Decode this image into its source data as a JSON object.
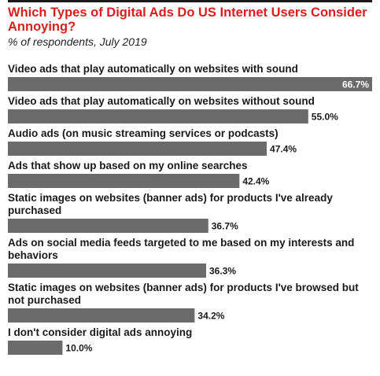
{
  "chart_data": {
    "type": "bar",
    "orientation": "horizontal",
    "title": "Which Types of Digital Ads Do US Internet Users Consider Annoying?",
    "subtitle": "% of respondents, July 2019",
    "categories": [
      "Video ads that play automatically on websites with sound",
      "Video ads that play automatically on websites without sound",
      "Audio ads (on music streaming services or podcasts)",
      "Ads that show up based on my online searches",
      "Static images on websites (banner ads) for products I've already purchased",
      "Ads on social media feeds targeted to me based on my interests and behaviors",
      "Static images on websites (banner ads) for products I've browsed but not purchased",
      "I don't consider digital ads annoying"
    ],
    "values": [
      66.7,
      55.0,
      47.4,
      42.4,
      36.7,
      36.3,
      34.2,
      10.0
    ],
    "value_labels": [
      "66.7%",
      "55.0%",
      "47.4%",
      "42.4%",
      "36.7%",
      "36.3%",
      "34.2%",
      "10.0%"
    ],
    "xlim": [
      0,
      66.7
    ],
    "grid": false,
    "legend": "none",
    "colors": {
      "title": "#d91e1e",
      "bar": "#6b6b6b",
      "label": "#1a1a1a",
      "value_inside": "#ffffff",
      "rule": "#1a1a1a"
    }
  }
}
